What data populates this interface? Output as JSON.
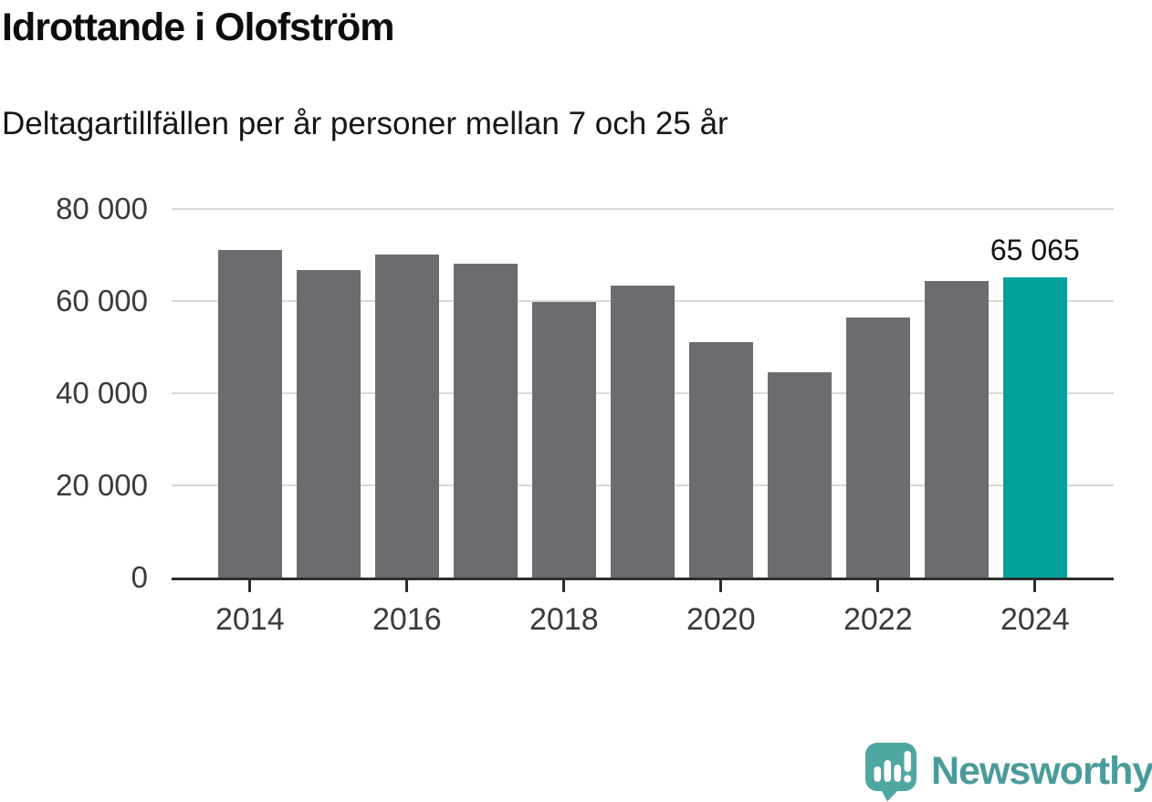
{
  "header": {
    "title": "Idrottande i Olofström",
    "subtitle": "Deltagartillfällen per år personer mellan 7 och 25 år"
  },
  "chart_data": {
    "type": "bar",
    "title": "Idrottande i Olofström",
    "subtitle": "Deltagartillfällen per år personer mellan 7 och 25 år",
    "categories": [
      "2014",
      "2015",
      "2016",
      "2017",
      "2018",
      "2019",
      "2020",
      "2021",
      "2022",
      "2023",
      "2024"
    ],
    "values": [
      71000,
      66800,
      70100,
      68200,
      59900,
      63300,
      51000,
      44500,
      56400,
      64300,
      65065
    ],
    "highlight": {
      "category": "2024",
      "value": 65065,
      "label": "65 065"
    },
    "ylim": [
      0,
      80000
    ],
    "yticks": [
      {
        "value": 0,
        "label": "0"
      },
      {
        "value": 20000,
        "label": "20 000"
      },
      {
        "value": 40000,
        "label": "40 000"
      },
      {
        "value": 60000,
        "label": "60 000"
      },
      {
        "value": 80000,
        "label": "80 000"
      }
    ],
    "xtick_labels": [
      "2014",
      "2016",
      "2018",
      "2020",
      "2022",
      "2024"
    ],
    "grid": true,
    "legend": false
  },
  "footer": {
    "brand": "Newsworthy"
  },
  "colors": {
    "bar_gray": "#6E6B70",
    "accent_teal": "#00A29B",
    "grid_gray": "#D9D9D9",
    "axis_dark": "#2D2D2D",
    "tick_label": "#3A3A3A",
    "title_black": "#0D0D0D",
    "logo_teal": "#4FA7A2",
    "brand_text_teal": "#4A9B9A"
  }
}
